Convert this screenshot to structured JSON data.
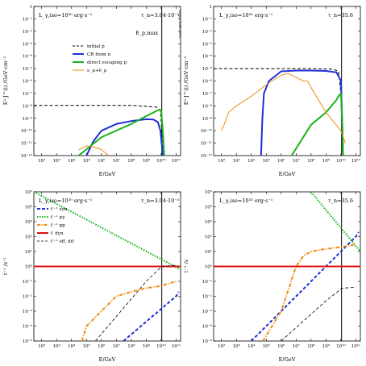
{
  "colors": {
    "initial": "#000000",
    "cr": "#1f2fd6",
    "direct": "#19b419",
    "neutrino": "#f08c14",
    "syn": "#1f2fd6",
    "pp": "#19b419",
    "pg": "#f08c14",
    "dyn": "#e01010",
    "diff": "#000000"
  },
  "chart_data": [
    {
      "id": "tl",
      "type": "line",
      "panel": "top-left",
      "xscale": "log",
      "yscale": "log",
      "xlim": [
        30,
        200000000000
      ],
      "ylim": [
        1e-12,
        1
      ],
      "xlabel": "E/GeV",
      "ylabel": "E²·J^(i) /GeV·cm⁻²",
      "x_ticks": [
        "10²",
        "10³",
        "10⁴",
        "10⁵",
        "10⁶",
        "10⁷",
        "10⁸",
        "10⁹",
        "10¹⁰",
        "10¹¹"
      ],
      "y_ticks": [
        "10⁻¹²",
        "10⁻¹¹",
        "10⁻¹⁰",
        "10⁻⁹",
        "10⁻⁸",
        "10⁻⁷",
        "10⁻⁶",
        "10⁻⁵",
        "10⁻⁴",
        "10⁻³",
        "10⁻²",
        "10⁻¹",
        "1"
      ],
      "annot_l": "L_γ,iso=10³⁰ erg·s⁻¹",
      "annot_r": "τ_n=3.04·10⁻²",
      "vline": 11000000000,
      "vline_label": "E_p,max",
      "vline_note": "Stop/Combi 2012",
      "legend": [
        "initial p",
        "CR from n",
        "direct escaping p",
        "ν_μ+ν̄_μ"
      ],
      "series": [
        {
          "key": "initial",
          "style": "dashed",
          "x": [
            30,
            100000000.0,
            5000000000.0,
            9000000000.0,
            11000000000.0,
            13000000000.0
          ],
          "y": [
            1.1e-08,
            1.1e-08,
            8e-09,
            4e-09,
            1e-10,
            1e-12
          ]
        },
        {
          "key": "cr",
          "style": "solid",
          "x": [
            100000,
            300000,
            1000000.0,
            10000000.0,
            100000000.0,
            1000000000.0,
            3000000000.0,
            6000000000.0,
            9000000000.0,
            13000000000.0
          ],
          "y": [
            1e-12,
            1.5e-11,
            1e-10,
            3.5e-10,
            6e-10,
            8.5e-10,
            8e-10,
            5e-10,
            1e-10,
            1e-12
          ]
        },
        {
          "key": "direct",
          "style": "solid",
          "x": [
            30000,
            1000000.0,
            100000000.0,
            1000000000.0,
            5000000000.0,
            8000000000.0,
            10000000000.0,
            13000000000.0,
            16000000000.0
          ],
          "y": [
            1e-12,
            3e-11,
            3.5e-10,
            1.5e-09,
            4e-09,
            5e-09,
            4e-09,
            1e-10,
            1e-12
          ]
        },
        {
          "key": "neutrino",
          "style": "solid",
          "x": [
            30000,
            100000,
            300000,
            1000000.0,
            2000000.0,
            3000000.0
          ],
          "y": [
            3e-12,
            6e-12,
            5e-12,
            3e-12,
            1.5e-12,
            1e-12
          ]
        }
      ]
    },
    {
      "id": "tr",
      "type": "line",
      "panel": "top-right",
      "xscale": "log",
      "yscale": "log",
      "xlim": [
        30,
        200000000000
      ],
      "ylim": [
        1e-12,
        1
      ],
      "xlabel": "E/GeV",
      "ylabel": "E²·J^(i) /GeV·cm⁻²",
      "x_ticks": [
        "10²",
        "10³",
        "10⁴",
        "10⁵",
        "10⁶",
        "10⁷",
        "10⁸",
        "10⁹",
        "10¹⁰",
        "10¹¹"
      ],
      "y_ticks": [
        "10⁻¹²",
        "10⁻¹¹",
        "10⁻¹⁰",
        "10⁻⁹",
        "10⁻⁸",
        "10⁻⁷",
        "10⁻⁶",
        "10⁻⁵",
        "10⁻⁴",
        "10⁻³",
        "10⁻²",
        "10⁻¹",
        "1"
      ],
      "annot_l": "L_γ,iso=10³³ erg·s⁻¹",
      "annot_r": "τ_n=35.6",
      "vline": 11000000000,
      "series": [
        {
          "key": "initial",
          "style": "dashed",
          "x": [
            30,
            100000000.0,
            3000000000.0,
            7000000000.0,
            10000000000.0,
            11500000000.0,
            13000000000.0
          ],
          "y": [
            1e-05,
            1e-05,
            9e-06,
            6e-06,
            1e-07,
            1e-10,
            1e-12
          ]
        },
        {
          "key": "cr",
          "style": "solid",
          "x": [
            45000,
            55000,
            70000,
            150000,
            1000000.0,
            10000000.0,
            100000000.0,
            1000000000.0,
            5000000000.0,
            10000000000.0,
            12000000000.0,
            14000000000.0
          ],
          "y": [
            1e-12,
            1e-09,
            1e-07,
            1e-06,
            6e-06,
            7e-06,
            7e-06,
            6.5e-06,
            5e-06,
            1e-06,
            1e-09,
            1e-12
          ]
        },
        {
          "key": "direct",
          "style": "solid",
          "x": [
            5000000,
            100000000.0,
            1000000000.0,
            5000000000.0,
            8000000000.0,
            10000000000.0,
            12000000000.0,
            14000000000.0
          ],
          "y": [
            1e-12,
            3e-10,
            3e-09,
            3e-08,
            8e-08,
            9e-08,
            1e-09,
            1e-12
          ]
        },
        {
          "key": "neutrino",
          "style": "solid",
          "x": [
            100,
            150,
            300,
            1000,
            10000,
            100000,
            1000000.0,
            3000000.0,
            10000000.0,
            30000000.0,
            60000000.0,
            100000000.0,
            1000000000.0,
            10000000000.0,
            20000000000.0
          ],
          "y": [
            1e-10,
            3e-10,
            3e-09,
            1e-08,
            6e-08,
            5e-07,
            3e-06,
            4e-06,
            2e-06,
            1e-06,
            1e-06,
            3e-07,
            3e-09,
            1e-10,
            1e-11
          ]
        }
      ]
    },
    {
      "id": "bl",
      "type": "line",
      "panel": "bottom-left",
      "xscale": "log",
      "yscale": "log",
      "xlim": [
        30,
        200000000000
      ],
      "ylim": [
        1e-05,
        100000
      ],
      "xlabel": "E/GeV",
      "ylabel": "t⁻¹ /s⁻¹",
      "x_ticks": [
        "10²",
        "10³",
        "10⁴",
        "10⁵",
        "10⁶",
        "10⁷",
        "10⁸",
        "10⁹",
        "10¹⁰",
        "10¹¹"
      ],
      "y_ticks": [
        "10⁻⁵",
        "10⁻⁴",
        "10⁻³",
        "10⁻²",
        "10⁻¹",
        "10⁰",
        "10¹",
        "10²",
        "10³",
        "10⁴",
        "10⁵"
      ],
      "annot_l": "L_γ,iso=10³⁰ erg·s⁻¹",
      "annot_r": "τ_n=3.04·10⁻²",
      "vline": 11000000000,
      "legend": [
        "t′⁻¹ syn",
        "t′⁻¹ pγ",
        "t′⁻¹ pp",
        "t′ dyn",
        "t′⁻¹ eff, dif"
      ],
      "series": [
        {
          "key": "syn",
          "style": "dashed",
          "x": [
            30000000.0,
            100000000000.0,
            150000000000.0
          ],
          "y": [
            1e-05,
            0.01,
            0.02
          ]
        },
        {
          "key": "pp",
          "style": "dotted",
          "x": [
            30,
            200000000000
          ],
          "y": [
            100000,
            0.63
          ]
        },
        {
          "key": "pg",
          "style": "dashdot",
          "x": [
            50000,
            100000,
            1000000.0,
            10000000.0,
            100000000.0,
            1000000000.0,
            10000000000.0,
            100000000000.0
          ],
          "y": [
            1e-05,
            0.0001,
            0.001,
            0.01,
            0.02,
            0.035,
            0.05,
            0.1
          ]
        },
        {
          "key": "dyn",
          "style": "solid",
          "x": [
            30,
            200000000000
          ],
          "y": [
            1,
            1
          ]
        },
        {
          "key": "diff",
          "style": "dashed",
          "x": [
            400000,
            1000000000.0,
            11000000000.0,
            100000000000.0
          ],
          "y": [
            1e-05,
            0.1,
            1,
            1.2
          ]
        }
      ]
    },
    {
      "id": "br",
      "type": "line",
      "panel": "bottom-right",
      "xscale": "log",
      "yscale": "log",
      "xlim": [
        30,
        200000000000
      ],
      "ylim": [
        1e-05,
        100000
      ],
      "xlabel": "E/GeV",
      "ylabel": "t⁻¹ /s",
      "x_ticks": [
        "10²",
        "10³",
        "10⁴",
        "10⁵",
        "10⁶",
        "10⁷",
        "10⁸",
        "10⁹",
        "10¹⁰",
        "10¹¹"
      ],
      "y_ticks": [
        "10⁻⁵",
        "10⁻⁴",
        "10⁻³",
        "10⁻²",
        "10⁻¹",
        "10⁰",
        "10¹",
        "10²",
        "10³",
        "10⁴",
        "10⁵"
      ],
      "annot_l": "L_γ,iso=10³³ erg·s⁻¹",
      "annot_r": "τ_n=35.6",
      "vline": 11000000000,
      "series": [
        {
          "key": "syn",
          "style": "dashed",
          "x": [
            10000,
            100000000000.0,
            150000000000.0
          ],
          "y": [
            1e-05,
            100,
            200
          ]
        },
        {
          "key": "pp",
          "style": "dotted",
          "x": [
            100000000.0,
            200000000000
          ],
          "y": [
            100000,
            10
          ]
        },
        {
          "key": "pg",
          "style": "dashdot",
          "x": [
            60000,
            1000000.0,
            10000000.0,
            30000000.0,
            100000000.0,
            1000000000.0,
            10000000000.0,
            100000000000.0
          ],
          "y": [
            1e-05,
            0.001,
            1,
            5,
            10,
            15,
            20,
            30
          ]
        },
        {
          "key": "dyn",
          "style": "solid",
          "x": [
            30,
            200000000000
          ],
          "y": [
            1,
            1
          ]
        },
        {
          "key": "diff",
          "style": "dashed",
          "x": [
            1000000.0,
            1000000000.0,
            10000000000.0,
            12000000000.0,
            100000000000.0
          ],
          "y": [
            1e-05,
            0.005,
            0.03,
            0.035,
            0.04
          ]
        }
      ]
    }
  ]
}
